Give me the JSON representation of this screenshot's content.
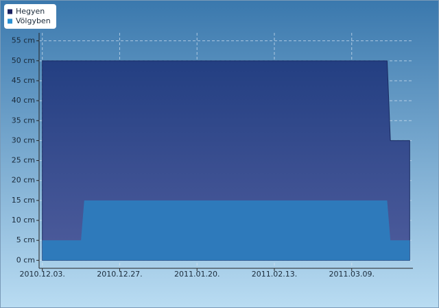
{
  "chart_data": {
    "type": "area",
    "x": [
      "2010.12.03.",
      "2010.12.15.",
      "2010.12.16.",
      "2011.03.20.",
      "2011.03.21.",
      "2011.03.27."
    ],
    "series": [
      {
        "name": "Hegyen",
        "color": "#233f82",
        "legend_color": "#1a2060",
        "values": [
          50,
          50,
          50,
          50,
          30,
          30
        ]
      },
      {
        "name": "Völgyben",
        "color": "#2e7abb",
        "legend_color": "#2a90d2",
        "values": [
          5,
          5,
          15,
          15,
          5,
          5
        ]
      }
    ],
    "xlim": [
      "2010.12.02.",
      "2011.03.28."
    ],
    "xticks": [
      "2010.12.03.",
      "2010.12.27.",
      "2011.01.20.",
      "2011.02.13.",
      "2011.03.09."
    ],
    "ylim": [
      -2,
      57
    ],
    "yticks": [
      {
        "value": 0,
        "label": "0 cm"
      },
      {
        "value": 5,
        "label": "5 cm"
      },
      {
        "value": 10,
        "label": "10 cm"
      },
      {
        "value": 15,
        "label": "15 cm"
      },
      {
        "value": 20,
        "label": "20 cm"
      },
      {
        "value": 25,
        "label": "25 cm"
      },
      {
        "value": 30,
        "label": "30 cm"
      },
      {
        "value": 35,
        "label": "35 cm"
      },
      {
        "value": 40,
        "label": "40 cm"
      },
      {
        "value": 45,
        "label": "45 cm"
      },
      {
        "value": 50,
        "label": "50 cm"
      },
      {
        "value": 55,
        "label": "55 cm"
      }
    ],
    "grid": true,
    "legend": "top-left"
  }
}
